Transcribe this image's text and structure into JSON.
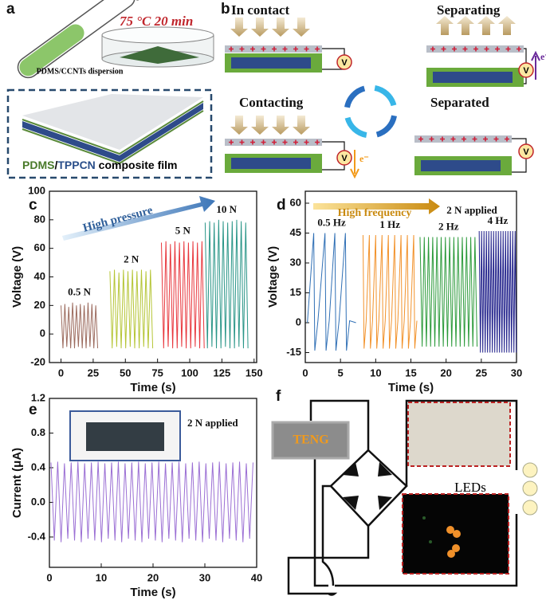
{
  "panel_labels": [
    "a",
    "b",
    "c",
    "d",
    "e",
    "f"
  ],
  "panel_a": {
    "condition": "75 °C 20 min",
    "dispersion": "PDMS/CCNTs dispersion",
    "film": [
      "PDMS",
      "/",
      "TPPCN",
      " composite film"
    ]
  },
  "panel_b": {
    "states": [
      "In contact",
      "Separating",
      "Contacting",
      "Separated"
    ],
    "meter": "V",
    "electron": "e⁻"
  },
  "panel_f": {
    "source": "TENG",
    "load": "LEDs"
  },
  "chart_data": [
    {
      "type": "line",
      "xlabel": "Time (s)",
      "ylabel": "Voltage (V)",
      "annotation": "High pressure",
      "xlim": [
        -9,
        152
      ],
      "ylim": [
        -20,
        100
      ],
      "xticks": [
        0,
        25,
        50,
        75,
        100,
        125,
        150
      ],
      "yticks": [
        -20,
        0,
        20,
        40,
        60,
        80,
        100
      ],
      "series": [
        {
          "name": "0.5 N",
          "color": "#9c6b5e",
          "x": [
            0,
            1.5,
            3,
            4.5,
            6,
            7.5,
            9,
            10.5,
            12,
            13.5,
            15,
            16.5,
            18,
            19.5,
            21,
            22.5,
            24,
            25.5,
            27,
            28.5
          ],
          "values": [
            20,
            -10,
            21,
            -9,
            19,
            -10,
            22,
            -10,
            20,
            -9,
            21,
            -10,
            20,
            -10,
            22,
            -9,
            21,
            -10,
            20,
            -10
          ]
        },
        {
          "name": "2 N",
          "color": "#b5c535",
          "x": [
            38,
            39.75,
            41.5,
            43.25,
            45,
            46.75,
            48.5,
            50.25,
            52,
            53.75,
            55.5,
            57.25,
            59,
            60.75,
            62.5,
            64.25,
            66,
            67.75,
            69.5,
            71.25
          ],
          "values": [
            44,
            -10,
            45,
            -9,
            43,
            -10,
            45,
            -10,
            44,
            -9,
            45,
            -10,
            44,
            -10,
            45,
            -9,
            44,
            -10,
            45,
            -10
          ]
        },
        {
          "name": "5 N",
          "color": "#e8373d",
          "x": [
            78,
            79.75,
            81.5,
            83.25,
            85,
            86.75,
            88.5,
            90.25,
            92,
            93.75,
            95.5,
            97.25,
            99,
            100.75,
            102.5,
            104.25,
            106,
            107.75,
            109.5,
            111.25
          ],
          "values": [
            64,
            -10,
            65,
            -9,
            63,
            -10,
            65,
            -10,
            64,
            -9,
            65,
            -10,
            64,
            -10,
            65,
            -9,
            64,
            -10,
            65,
            -10
          ]
        },
        {
          "name": "10 N",
          "color": "#2a9688",
          "x": [
            112,
            113.75,
            115.5,
            117.25,
            119,
            120.75,
            122.5,
            124.25,
            126,
            127.75,
            129.5,
            131.25,
            133,
            134.75,
            136.5,
            138.25,
            140,
            141.75,
            143.5,
            145.25
          ],
          "values": [
            78,
            -10,
            79,
            -9,
            78,
            -10,
            80,
            -10,
            79,
            -9,
            78,
            -10,
            79,
            -10,
            80,
            -9,
            79,
            -10,
            78,
            -10
          ]
        }
      ]
    },
    {
      "type": "line",
      "xlabel": "Time (s)",
      "ylabel": "Voltage (V)",
      "annotation": "High frequency",
      "note": "2 N applied",
      "xlim": [
        0,
        30
      ],
      "ylim": [
        -20,
        66
      ],
      "xticks": [
        0,
        5,
        10,
        15,
        20,
        25,
        30
      ],
      "yticks": [
        -15,
        0,
        15,
        30,
        45,
        60
      ],
      "series": [
        {
          "name": "0.5 Hz",
          "color": "#2f6fb5",
          "x": [
            0.3,
            1.2,
            1.35,
            1.8,
            2.8,
            2.95,
            3.4,
            4.2,
            4.35,
            4.8,
            5.7,
            5.85,
            6.3,
            7.2
          ],
          "values": [
            0,
            45,
            -14,
            1,
            45,
            -14,
            1,
            45,
            -14,
            1,
            45,
            -14,
            1,
            0
          ]
        },
        {
          "name": "1 Hz",
          "color": "#f2922b",
          "x": [
            8.2,
            8.35,
            8.65,
            9.1,
            9.25,
            9.55,
            10,
            10.15,
            10.45,
            10.9,
            11.05,
            11.35,
            11.8,
            11.95,
            12.25,
            12.7,
            12.85,
            13.15,
            13.6,
            13.75,
            14.05,
            14.5,
            14.65,
            14.95,
            15.4,
            15.55,
            15.85
          ],
          "values": [
            44,
            -13,
            1,
            44,
            -13,
            1,
            44,
            -13,
            1,
            44,
            -13,
            1,
            44,
            -13,
            1,
            44,
            -13,
            1,
            44,
            -13,
            1,
            44,
            -13,
            1,
            44,
            -13,
            1
          ]
        },
        {
          "name": "2 Hz",
          "color": "#2b9a3a",
          "x": [
            16.3,
            16.6,
            16.9,
            17.2,
            17.5,
            17.8,
            18.1,
            18.4,
            18.7,
            19,
            19.3,
            19.6,
            19.9,
            20.2,
            20.5,
            20.8,
            21.1,
            21.4,
            21.7,
            22,
            22.3,
            22.6,
            22.9,
            23.2,
            23.5,
            23.8,
            24.1,
            24.4
          ],
          "values": [
            43,
            -12,
            43,
            -12,
            43,
            -12,
            43,
            -12,
            43,
            -12,
            43,
            -12,
            43,
            -12,
            43,
            -12,
            43,
            -12,
            43,
            -12,
            43,
            -12,
            43,
            -12,
            43,
            -12,
            43,
            -12
          ]
        },
        {
          "name": "4 Hz",
          "color": "#1f1f8a",
          "x": [
            24.7,
            24.87,
            25.04,
            25.21,
            25.38,
            25.55,
            25.72,
            25.89,
            26.06,
            26.23,
            26.4,
            26.57,
            26.74,
            26.91,
            27.08,
            27.25,
            27.42,
            27.59,
            27.76,
            27.93,
            28.1,
            28.27,
            28.44,
            28.61,
            28.78,
            28.95,
            29.12,
            29.29,
            29.46,
            29.63,
            29.8,
            29.97
          ],
          "values": [
            46,
            -15,
            46,
            -15,
            46,
            -15,
            46,
            -15,
            46,
            -15,
            46,
            -15,
            46,
            -15,
            46,
            -15,
            46,
            -15,
            46,
            -15,
            46,
            -15,
            46,
            -15,
            46,
            -15,
            46,
            -15,
            46,
            -15,
            46,
            -15
          ]
        }
      ]
    },
    {
      "type": "line",
      "xlabel": "Time (s)",
      "ylabel": "Current (μA)",
      "note": "2 N applied",
      "xlim": [
        0,
        40
      ],
      "ylim": [
        -0.75,
        1.2
      ],
      "xticks": [
        0,
        10,
        20,
        30,
        40
      ],
      "yticks": [
        -0.4,
        {
          "value": 0,
          "label": "0.0"
        },
        0.4,
        0.8,
        1.2
      ],
      "series": [
        {
          "color": "#9b6fd4",
          "x": [
            0.3,
            0.95,
            1.6,
            2.25,
            2.9,
            3.55,
            4.2,
            4.85,
            5.5,
            6.15,
            6.8,
            7.45,
            8.1,
            8.75,
            9.4,
            10.05,
            10.7,
            11.35,
            12,
            12.65,
            13.3,
            13.95,
            14.6,
            15.25,
            15.9,
            16.55,
            17.2,
            17.85,
            18.5,
            19.15,
            19.8,
            20.45,
            21.1,
            21.75,
            22.4,
            23.05,
            23.7,
            24.35,
            25,
            25.65,
            26.3,
            26.95,
            27.6,
            28.25,
            28.9,
            29.55,
            30.2,
            30.85,
            31.5,
            32.15,
            32.8,
            33.45,
            34.1,
            34.75,
            35.4,
            36.05,
            36.7,
            37.35,
            38,
            38.65,
            39.3
          ],
          "values": [
            0.46,
            -0.44,
            0.47,
            -0.46,
            0.45,
            -0.42,
            0.46,
            -0.44,
            0.47,
            -0.46,
            0.45,
            -0.42,
            0.46,
            -0.44,
            0.47,
            -0.46,
            0.45,
            -0.42,
            0.46,
            -0.44,
            0.47,
            -0.46,
            0.45,
            -0.42,
            0.46,
            -0.44,
            0.47,
            -0.46,
            0.45,
            -0.42,
            0.46,
            -0.44,
            0.47,
            -0.46,
            0.45,
            -0.42,
            0.46,
            -0.44,
            0.47,
            -0.46,
            0.45,
            -0.42,
            0.46,
            -0.44,
            0.47,
            -0.46,
            0.45,
            -0.42,
            0.46,
            -0.44,
            0.47,
            -0.46,
            0.45,
            -0.42,
            0.46,
            -0.44,
            0.47,
            -0.46,
            0.45,
            -0.42,
            0.46
          ]
        }
      ]
    }
  ]
}
